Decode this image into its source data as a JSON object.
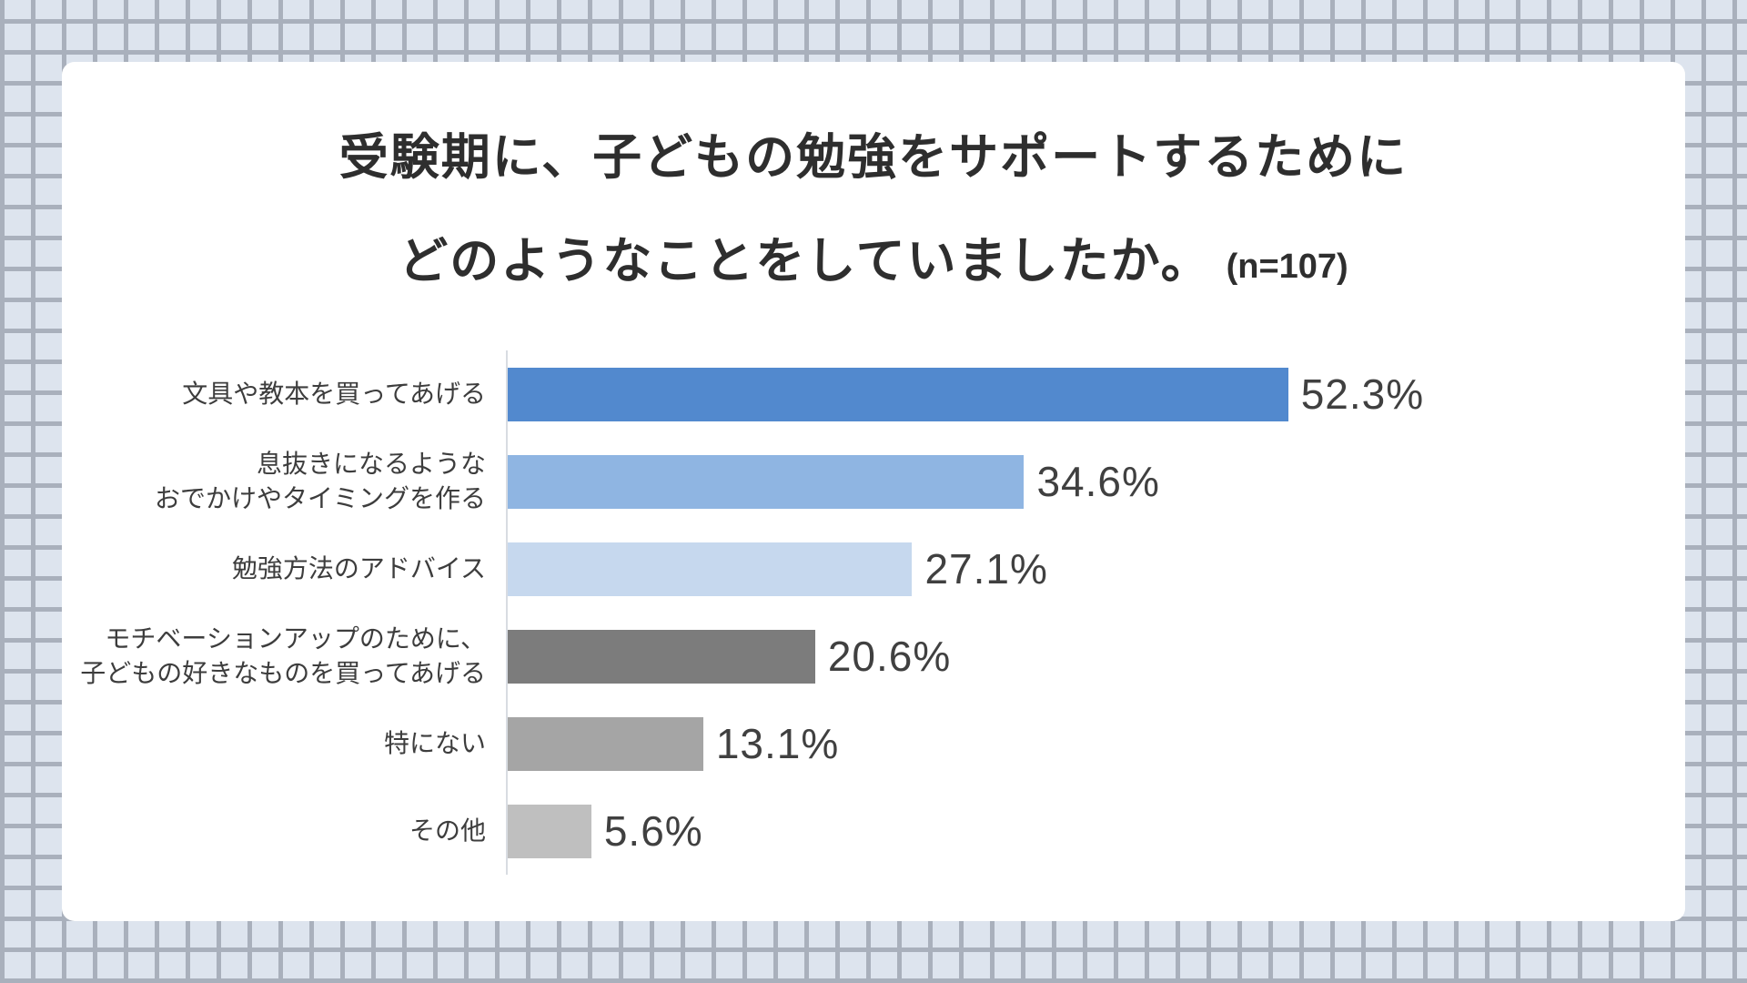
{
  "header": {
    "title_line1": "受験期に、子どもの勉強をサポートするために",
    "title_line2": "どのようなことをしていましたか。",
    "n_label": "(n=107)"
  },
  "chart_data": {
    "type": "bar",
    "orientation": "horizontal",
    "title": "受験期に、子どもの勉強をサポートするために どのようなことをしていましたか。",
    "sample_size_label": "(n=107)",
    "categories": [
      "文具や教本を買ってあげる",
      "息抜きになるような\nおでかけやタイミングを作る",
      "勉強方法のアドバイス",
      "モチベーションアップのために、\n子どもの好きなものを買ってあげる",
      "特にない",
      "その他"
    ],
    "values": [
      52.3,
      34.6,
      27.1,
      20.6,
      13.1,
      5.6
    ],
    "value_labels": [
      "52.3%",
      "34.6%",
      "27.1%",
      "20.6%",
      "13.1%",
      "5.6%"
    ],
    "colors": [
      "#5289ce",
      "#8fb5e2",
      "#c6d8ee",
      "#7c7c7c",
      "#a5a5a5",
      "#bfbfbf"
    ],
    "xlim": [
      0,
      55
    ],
    "grid": false,
    "legend": "none",
    "axis_line_color": "#d8dce2",
    "background_tile_color": "#dde4ee",
    "background_grout_color": "#a9b0bc"
  }
}
